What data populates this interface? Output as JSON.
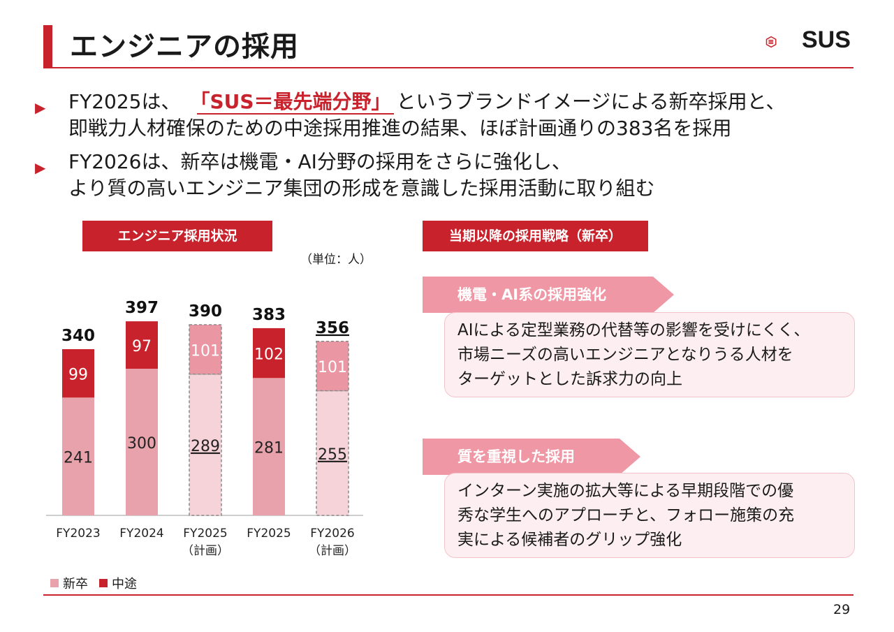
{
  "header": {
    "title": "エンジニアの採用",
    "logo_text": "SUS"
  },
  "bullets": [
    {
      "pre": "FY2025は、",
      "highlight": "「SUS＝最先端分野」",
      "post": "というブランドイメージによる新卒採用と、",
      "line2": "即戦力人材確保のための中途採用推進の結果、ほぼ計画通りの383名を採用"
    },
    {
      "line1": "FY2026は、新卒は機電・AI分野の採用をさらに強化し、",
      "line2": "より質の高いエンジニア集団の形成を意識した採用活動に取り組む"
    }
  ],
  "left_section": {
    "title": "エンジニア採用状況",
    "unit": "（単位：人）"
  },
  "right_section": {
    "title": "当期以降の採用戦略（新卒）",
    "items": [
      {
        "tag": "機電・AI系の採用強化",
        "lines": [
          "AIによる定型業務の代替等の影響を受けにくく、",
          "市場ニーズの高いエンジニアとなりうる人材を",
          "ターゲットとした訴求力の向上"
        ]
      },
      {
        "tag": "質を重視した採用",
        "lines": [
          "インターン実施の拡大等による早期段階での優",
          "秀な学生へのアプローチと、フォロー施策の充",
          "実による候補者のグリップ強化"
        ]
      }
    ]
  },
  "chart_data": {
    "type": "bar",
    "stacked": true,
    "categories": [
      "FY2023",
      "FY2024",
      "FY2025\n（計画）",
      "FY2025",
      "FY2026\n（計画）"
    ],
    "planned": [
      false,
      false,
      true,
      false,
      true
    ],
    "series": [
      {
        "name": "新卒",
        "values": [
          241,
          300,
          289,
          281,
          255
        ],
        "color": "#e8a2ab",
        "planned_color": "#f6d3d8"
      },
      {
        "name": "中途",
        "values": [
          99,
          97,
          101,
          102,
          101
        ],
        "color": "#c8232c",
        "planned_color": "#ea97a3"
      }
    ],
    "totals": [
      340,
      397,
      390,
      383,
      356
    ],
    "ylim": [
      0,
      420
    ]
  },
  "footer": {
    "page_number": "29"
  }
}
